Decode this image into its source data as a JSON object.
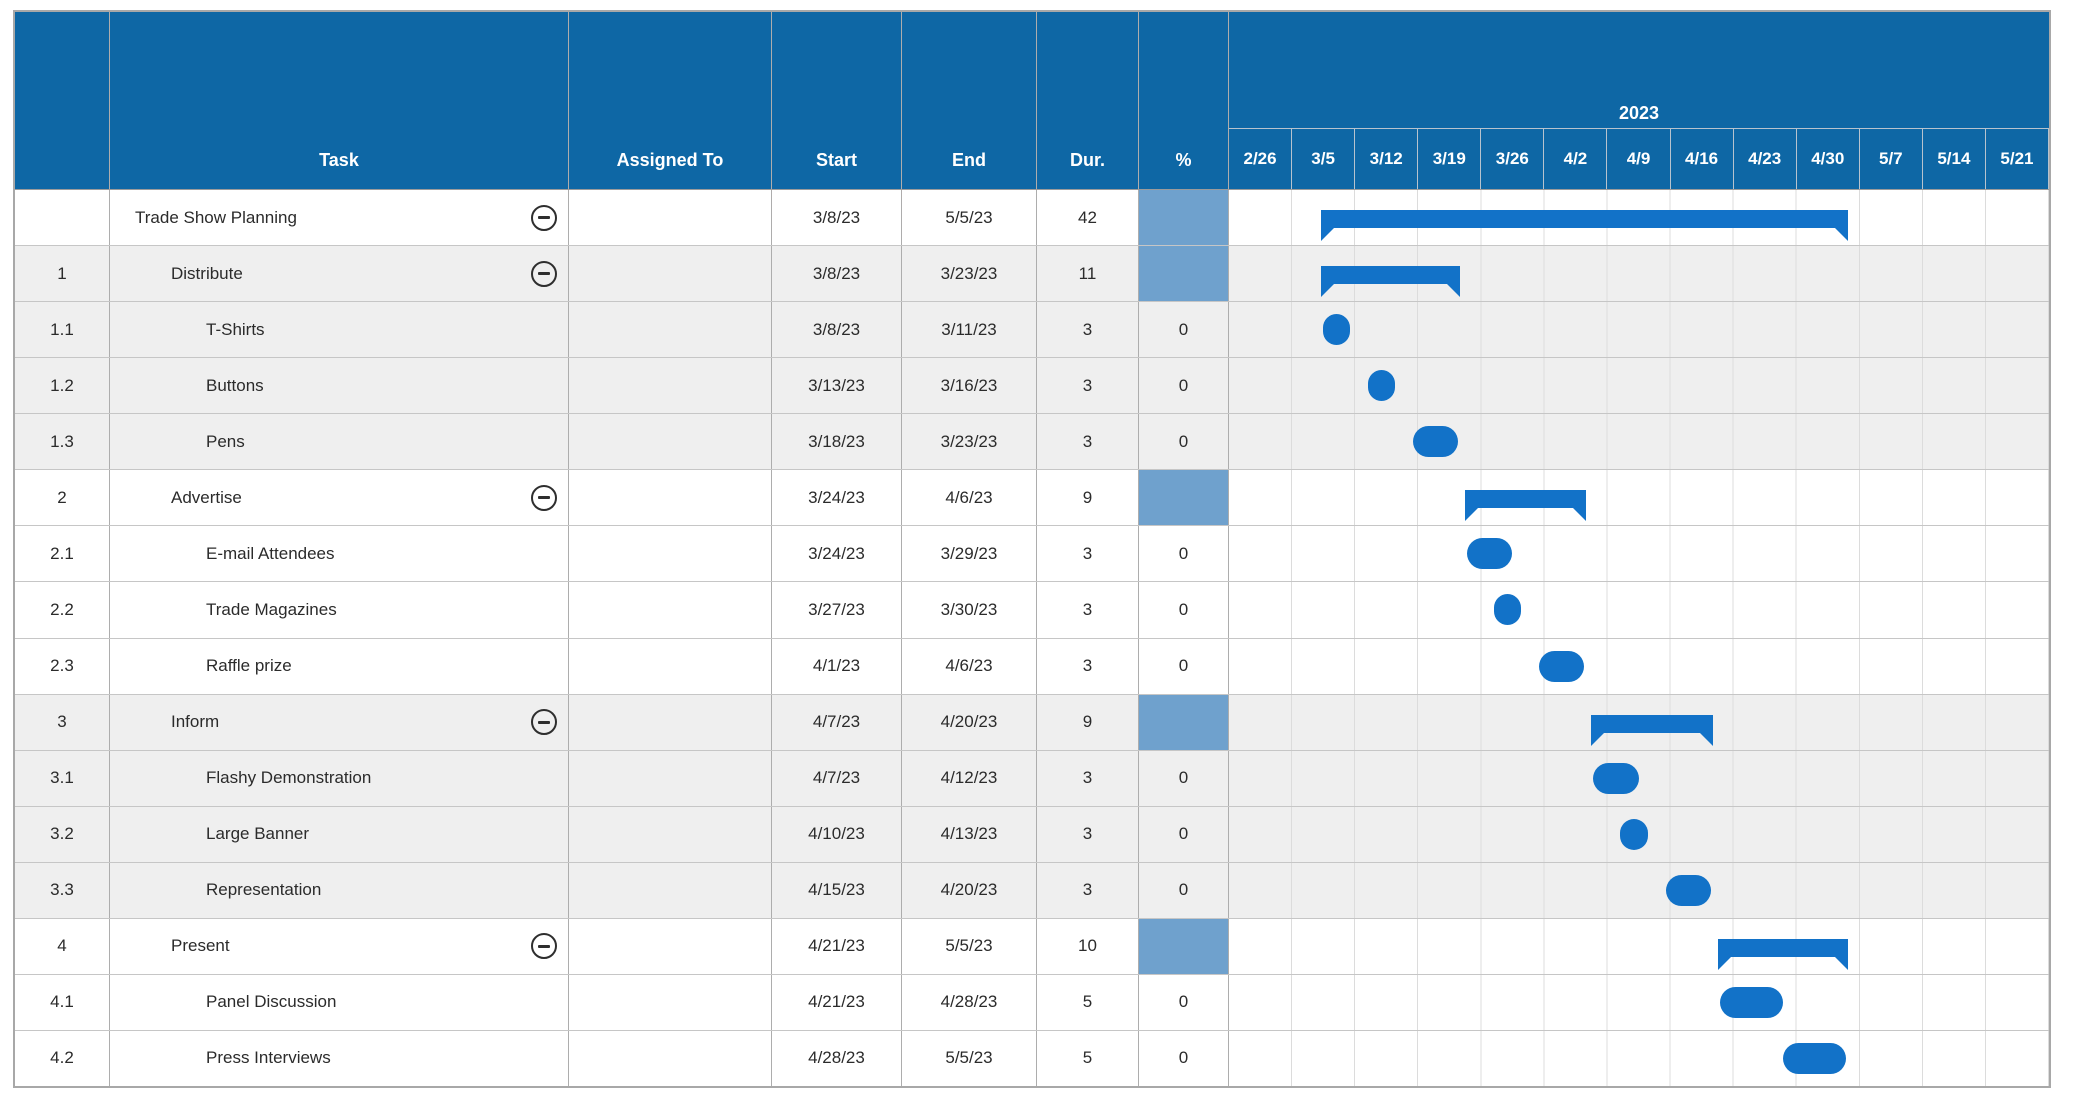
{
  "header": {
    "columns": [
      "",
      "Task",
      "Assigned To",
      "Start",
      "End",
      "Dur.",
      "%"
    ],
    "year_label": "2023",
    "weeks": [
      "2/26",
      "3/5",
      "3/12",
      "3/19",
      "3/26",
      "4/2",
      "4/9",
      "4/16",
      "4/23",
      "4/30",
      "5/7",
      "5/14",
      "5/21"
    ]
  },
  "rows": [
    {
      "num": "",
      "task": "Trade Show Planning",
      "indent": 0,
      "collapsible": true,
      "collapse_icon": "minus-circle",
      "assigned": "",
      "start": "3/8/23",
      "end": "5/5/23",
      "dur": "42",
      "pct": "",
      "pct_fill": true,
      "bar": "summary",
      "shaded": false
    },
    {
      "num": "1",
      "task": "Distribute",
      "indent": 1,
      "collapsible": true,
      "collapse_icon": "minus-circle",
      "assigned": "",
      "start": "3/8/23",
      "end": "3/23/23",
      "dur": "11",
      "pct": "",
      "pct_fill": true,
      "bar": "summary",
      "shaded": true
    },
    {
      "num": "1.1",
      "task": "T-Shirts",
      "indent": 2,
      "collapsible": false,
      "assigned": "",
      "start": "3/8/23",
      "end": "3/11/23",
      "dur": "3",
      "pct": "0",
      "pct_fill": false,
      "bar": "task",
      "shaded": true
    },
    {
      "num": "1.2",
      "task": "Buttons",
      "indent": 2,
      "collapsible": false,
      "assigned": "",
      "start": "3/13/23",
      "end": "3/16/23",
      "dur": "3",
      "pct": "0",
      "pct_fill": false,
      "bar": "task",
      "shaded": true
    },
    {
      "num": "1.3",
      "task": "Pens",
      "indent": 2,
      "collapsible": false,
      "assigned": "",
      "start": "3/18/23",
      "end": "3/23/23",
      "dur": "3",
      "pct": "0",
      "pct_fill": false,
      "bar": "task",
      "shaded": true
    },
    {
      "num": "2",
      "task": "Advertise",
      "indent": 1,
      "collapsible": true,
      "collapse_icon": "minus-circle",
      "assigned": "",
      "start": "3/24/23",
      "end": "4/6/23",
      "dur": "9",
      "pct": "",
      "pct_fill": true,
      "bar": "summary",
      "shaded": false
    },
    {
      "num": "2.1",
      "task": "E-mail Attendees",
      "indent": 2,
      "collapsible": false,
      "assigned": "",
      "start": "3/24/23",
      "end": "3/29/23",
      "dur": "3",
      "pct": "0",
      "pct_fill": false,
      "bar": "task",
      "shaded": false
    },
    {
      "num": "2.2",
      "task": "Trade Magazines",
      "indent": 2,
      "collapsible": false,
      "assigned": "",
      "start": "3/27/23",
      "end": "3/30/23",
      "dur": "3",
      "pct": "0",
      "pct_fill": false,
      "bar": "task",
      "shaded": false
    },
    {
      "num": "2.3",
      "task": "Raffle prize",
      "indent": 2,
      "collapsible": false,
      "assigned": "",
      "start": "4/1/23",
      "end": "4/6/23",
      "dur": "3",
      "pct": "0",
      "pct_fill": false,
      "bar": "task",
      "shaded": false
    },
    {
      "num": "3",
      "task": "Inform",
      "indent": 1,
      "collapsible": true,
      "collapse_icon": "minus-circle",
      "assigned": "",
      "start": "4/7/23",
      "end": "4/20/23",
      "dur": "9",
      "pct": "",
      "pct_fill": true,
      "bar": "summary",
      "shaded": true
    },
    {
      "num": "3.1",
      "task": "Flashy Demonstration",
      "indent": 2,
      "collapsible": false,
      "assigned": "",
      "start": "4/7/23",
      "end": "4/12/23",
      "dur": "3",
      "pct": "0",
      "pct_fill": false,
      "bar": "task",
      "shaded": true
    },
    {
      "num": "3.2",
      "task": "Large Banner",
      "indent": 2,
      "collapsible": false,
      "assigned": "",
      "start": "4/10/23",
      "end": "4/13/23",
      "dur": "3",
      "pct": "0",
      "pct_fill": false,
      "bar": "task",
      "shaded": true
    },
    {
      "num": "3.3",
      "task": "Representation",
      "indent": 2,
      "collapsible": false,
      "assigned": "",
      "start": "4/15/23",
      "end": "4/20/23",
      "dur": "3",
      "pct": "0",
      "pct_fill": false,
      "bar": "task",
      "shaded": true
    },
    {
      "num": "4",
      "task": "Present",
      "indent": 1,
      "collapsible": true,
      "collapse_icon": "minus-circle",
      "assigned": "",
      "start": "4/21/23",
      "end": "5/5/23",
      "dur": "10",
      "pct": "",
      "pct_fill": true,
      "bar": "summary",
      "shaded": false
    },
    {
      "num": "4.1",
      "task": "Panel Discussion",
      "indent": 2,
      "collapsible": false,
      "assigned": "",
      "start": "4/21/23",
      "end": "4/28/23",
      "dur": "5",
      "pct": "0",
      "pct_fill": false,
      "bar": "task",
      "shaded": false
    },
    {
      "num": "4.2",
      "task": "Press Interviews",
      "indent": 2,
      "collapsible": false,
      "assigned": "",
      "start": "4/28/23",
      "end": "5/5/23",
      "dur": "5",
      "pct": "0",
      "pct_fill": false,
      "bar": "task",
      "shaded": false
    }
  ],
  "timeline": {
    "start_week": "2/26",
    "weeks_shown": 13,
    "year": "2023"
  },
  "colors": {
    "header_blue": "#0E67A5",
    "bar_blue": "#1272C8",
    "percent_summary_fill": "#6FA1CD",
    "row_shade": "#EFEFEF",
    "grid_line": "#DCDCDC",
    "cell_border": "#ADADAD",
    "header_text": "#FFFFFF",
    "body_text": "#2B2B2B"
  }
}
